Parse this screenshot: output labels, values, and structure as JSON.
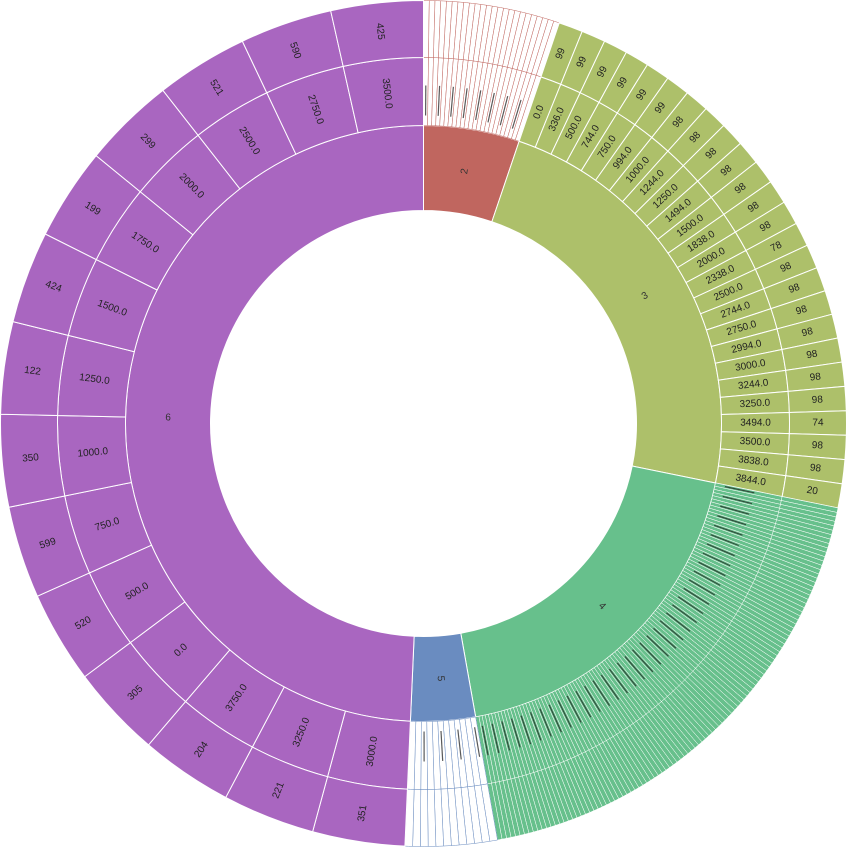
{
  "chart_data": {
    "type": "sunburst",
    "title": "",
    "colors": {
      "2": "#c0665f",
      "3": "#adc06a",
      "4": "#67c08c",
      "5": "#6a8cc0",
      "6": "#a966c0",
      "label_dark": "#222222",
      "noise_line": "#222222"
    },
    "groups": [
      {
        "label": "2",
        "value": 5.2,
        "children": [],
        "dense_children": 24
      },
      {
        "label": "3",
        "value": 23.0,
        "children": [
          {
            "label": "0.0",
            "value": 99
          },
          {
            "label": "336.0",
            "value": 99
          },
          {
            "label": "500.0",
            "value": 99
          },
          {
            "label": "744.0",
            "value": 99
          },
          {
            "label": "750.0",
            "value": 99
          },
          {
            "label": "994.0",
            "value": 99
          },
          {
            "label": "1000.0",
            "value": 98
          },
          {
            "label": "1244.0",
            "value": 98
          },
          {
            "label": "1250.0",
            "value": 98
          },
          {
            "label": "1494.0",
            "value": 98
          },
          {
            "label": "1500.0",
            "value": 98
          },
          {
            "label": "1838.0",
            "value": 98
          },
          {
            "label": "2000.0",
            "value": 98
          },
          {
            "label": "2338.0",
            "value": 78
          },
          {
            "label": "2500.0",
            "value": 98
          },
          {
            "label": "2744.0",
            "value": 98
          },
          {
            "label": "2750.0",
            "value": 98
          },
          {
            "label": "2994.0",
            "value": 98
          },
          {
            "label": "3000.0",
            "value": 98
          },
          {
            "label": "3244.0",
            "value": 98
          },
          {
            "label": "3250.0",
            "value": 98
          },
          {
            "label": "3494.0",
            "value": 74
          },
          {
            "label": "3500.0",
            "value": 98
          },
          {
            "label": "3838.0",
            "value": 98
          },
          {
            "label": "3844.0",
            "value": 20
          }
        ]
      },
      {
        "label": "4",
        "value": 19.0,
        "children": [],
        "dense_children": 110
      },
      {
        "label": "5",
        "value": 3.5,
        "children": [],
        "dense_children": 12
      },
      {
        "label": "6",
        "value": 49.3,
        "children": [
          {
            "label": "3000.0",
            "value": 351
          },
          {
            "label": "3250.0",
            "value": 221
          },
          {
            "label": "3750.0",
            "value": 204
          },
          {
            "label": "0.0",
            "value": 305
          },
          {
            "label": "500.0",
            "value": 520
          },
          {
            "label": "750.0",
            "value": 599
          },
          {
            "label": "1000.0",
            "value": 350
          },
          {
            "label": "1250.0",
            "value": 122
          },
          {
            "label": "1500.0",
            "value": 424
          },
          {
            "label": "1750.0",
            "value": 199
          },
          {
            "label": "2000.0",
            "value": 299
          },
          {
            "label": "2500.0",
            "value": 521
          },
          {
            "label": "2750.0",
            "value": 590
          },
          {
            "label": "3500.0",
            "value": 425
          }
        ]
      }
    ]
  }
}
